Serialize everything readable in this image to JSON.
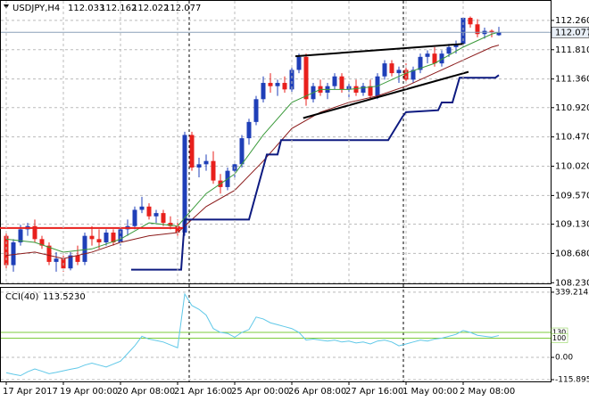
{
  "chart_data": [
    {
      "type": "candlestick",
      "title": "USDJPY,H4",
      "categories": [
        "17 Apr 2017",
        null,
        null,
        null,
        null,
        null,
        null,
        null,
        "19 Apr 00:00",
        null,
        null,
        null,
        null,
        null,
        null,
        null,
        "20 Apr 08:00",
        null,
        null,
        null,
        null,
        null,
        null,
        null,
        "21 Apr 16:00",
        null,
        null,
        null,
        null,
        null,
        null,
        null,
        "25 Apr 00:00",
        null,
        null,
        null,
        null,
        null,
        null,
        null,
        "26 Apr 08:00",
        null,
        null,
        null,
        null,
        null,
        null,
        null,
        "27 Apr 16:00",
        null,
        null,
        null,
        null,
        null,
        null,
        null,
        "1 May 00:00",
        null,
        null,
        null,
        null,
        null,
        null,
        null,
        "2 May 08:00",
        null,
        null,
        null,
        null,
        null
      ],
      "open": [
        108.95,
        108.5,
        108.85,
        109.05,
        109.1,
        108.9,
        108.8,
        108.55,
        108.6,
        108.45,
        108.65,
        108.55,
        108.95,
        108.9,
        108.85,
        109.0,
        108.85,
        109.05,
        109.1,
        109.35,
        109.4,
        109.25,
        109.3,
        109.15,
        109.1,
        109.0,
        110.5,
        110.0,
        110.05,
        110.1,
        109.8,
        109.7,
        109.95,
        110.05,
        110.45,
        110.7,
        111.05,
        111.3,
        111.25,
        111.3,
        111.2,
        111.5,
        111.7,
        111.05,
        111.25,
        111.15,
        111.25,
        111.4,
        111.2,
        111.25,
        111.15,
        111.25,
        111.1,
        111.4,
        111.6,
        111.45,
        111.5,
        111.35,
        111.5,
        111.7,
        111.75,
        111.6,
        111.75,
        111.85,
        111.9,
        112.3,
        112.2,
        112.05,
        112.1,
        112.033
      ],
      "high": [
        109.0,
        108.9,
        109.12,
        109.15,
        109.2,
        108.95,
        108.85,
        108.7,
        108.65,
        108.7,
        108.8,
        109.0,
        109.1,
        109.05,
        109.05,
        109.05,
        109.1,
        109.2,
        109.4,
        109.55,
        109.45,
        109.35,
        109.35,
        109.25,
        109.2,
        110.55,
        110.55,
        110.15,
        110.2,
        110.25,
        109.9,
        110.0,
        110.1,
        110.5,
        110.75,
        111.1,
        111.4,
        111.45,
        111.35,
        111.4,
        111.55,
        111.75,
        111.75,
        111.3,
        111.35,
        111.3,
        111.45,
        111.45,
        111.3,
        111.35,
        111.3,
        111.35,
        111.45,
        111.65,
        111.65,
        111.55,
        111.6,
        111.55,
        111.75,
        111.8,
        111.85,
        111.8,
        111.9,
        111.95,
        112.3,
        112.32,
        112.28,
        112.15,
        112.12,
        112.162
      ],
      "low": [
        108.45,
        108.4,
        108.8,
        108.95,
        108.85,
        108.75,
        108.5,
        108.4,
        108.4,
        108.42,
        108.5,
        108.5,
        108.8,
        108.75,
        108.8,
        108.8,
        108.8,
        108.95,
        109.05,
        109.3,
        109.2,
        109.15,
        109.1,
        109.05,
        108.95,
        108.95,
        109.95,
        109.85,
        109.95,
        109.75,
        109.6,
        109.65,
        109.85,
        110.0,
        110.35,
        110.65,
        111.0,
        111.15,
        111.1,
        111.15,
        111.15,
        111.45,
        110.95,
        111.0,
        111.1,
        111.05,
        111.2,
        111.15,
        111.05,
        111.1,
        111.1,
        111.05,
        111.05,
        111.35,
        111.4,
        111.3,
        111.3,
        111.3,
        111.45,
        111.6,
        111.55,
        111.55,
        111.7,
        111.75,
        111.85,
        112.15,
        112.0,
        111.98,
        112.0,
        112.022
      ],
      "close": [
        108.5,
        108.85,
        109.05,
        109.1,
        108.9,
        108.8,
        108.55,
        108.6,
        108.45,
        108.65,
        108.55,
        108.95,
        108.9,
        108.85,
        109.0,
        108.85,
        109.05,
        109.1,
        109.35,
        109.4,
        109.25,
        109.3,
        109.15,
        109.1,
        109.0,
        110.5,
        110.0,
        110.05,
        110.1,
        109.8,
        109.7,
        109.95,
        110.05,
        110.45,
        110.7,
        111.05,
        111.3,
        111.25,
        111.3,
        111.2,
        111.5,
        111.7,
        111.05,
        111.25,
        111.15,
        111.25,
        111.4,
        111.2,
        111.25,
        111.15,
        111.25,
        111.1,
        111.4,
        111.6,
        111.45,
        111.5,
        111.35,
        111.5,
        111.7,
        111.75,
        111.6,
        111.75,
        111.85,
        111.9,
        112.3,
        112.2,
        112.05,
        112.1,
        112.08,
        112.077
      ],
      "up_color": "#1f3fb8",
      "down_color": "#e8201c",
      "ylim": [
        108.22,
        112.56
      ],
      "yticks": [
        {
          "value": 112.26,
          "label": "112.260"
        },
        {
          "value": 111.81,
          "label": "111.810"
        },
        {
          "value": 111.36,
          "label": "111.360"
        },
        {
          "value": 110.92,
          "label": "110.920"
        },
        {
          "value": 110.47,
          "label": "110.470"
        },
        {
          "value": 110.02,
          "label": "110.020"
        },
        {
          "value": 109.57,
          "label": "109.570"
        },
        {
          "value": 109.13,
          "label": "109.130"
        },
        {
          "value": 108.68,
          "label": "108.680"
        },
        {
          "value": 108.23,
          "label": "108.230"
        }
      ],
      "grid": true,
      "lines": [
        {
          "color": "#3a9a3a",
          "width": 1,
          "x": [
            0,
            4,
            8,
            12,
            16,
            20,
            24,
            28,
            32,
            36,
            40,
            44,
            48,
            52,
            56,
            60,
            64,
            68,
            69
          ],
          "values": [
            108.9,
            108.85,
            108.7,
            108.75,
            108.9,
            109.15,
            109.1,
            109.6,
            109.9,
            110.5,
            111.0,
            111.2,
            111.2,
            111.25,
            111.45,
            111.6,
            111.85,
            112.05,
            112.08
          ]
        },
        {
          "color": "#8b1a1a",
          "width": 1,
          "x": [
            0,
            4,
            8,
            12,
            16,
            20,
            24,
            28,
            32,
            36,
            40,
            44,
            48,
            52,
            56,
            60,
            64,
            68,
            69
          ],
          "values": [
            108.65,
            108.7,
            108.6,
            108.7,
            108.85,
            108.95,
            109.0,
            109.4,
            109.65,
            110.1,
            110.6,
            110.85,
            111.0,
            111.1,
            111.25,
            111.45,
            111.65,
            111.85,
            111.88
          ]
        },
        {
          "color": "#0d1a80",
          "width": 2,
          "x": [
            17.5,
            24.5,
            25,
            34,
            36.5,
            38,
            38.5,
            53.5,
            55.5,
            56,
            60.5,
            61,
            62.5,
            63.5,
            68.5,
            69
          ],
          "values": [
            108.43,
            108.43,
            109.2,
            109.2,
            110.2,
            110.2,
            110.42,
            110.42,
            110.78,
            110.85,
            110.88,
            111.0,
            111.0,
            111.38,
            111.38,
            111.42
          ]
        },
        {
          "color": "#000000",
          "width": 2,
          "x": [
            40.5,
            64.1
          ],
          "values": [
            111.71,
            111.9
          ]
        },
        {
          "color": "#000000",
          "width": 2,
          "x": [
            41.6,
            64.75
          ],
          "values": [
            110.76,
            111.47
          ]
        },
        {
          "color": "#e8201c",
          "width": 2,
          "x": [
            -0.875,
            24.75
          ],
          "values": [
            109.07,
            109.07
          ]
        }
      ]
    },
    {
      "type": "line",
      "title": "CCI(40)",
      "value_label": "113.5230",
      "color": "#5fc8e8",
      "values": [
        -80,
        -88,
        -95,
        -75,
        -60,
        -72,
        -85,
        -78,
        -70,
        -62,
        -55,
        -40,
        -30,
        -40,
        -50,
        -35,
        -20,
        20,
        60,
        110,
        95,
        88,
        80,
        65,
        50,
        330,
        270,
        250,
        220,
        150,
        130,
        125,
        105,
        130,
        145,
        210,
        200,
        180,
        170,
        160,
        150,
        130,
        90,
        95,
        90,
        85,
        90,
        80,
        85,
        75,
        80,
        70,
        85,
        90,
        80,
        60,
        70,
        80,
        90,
        85,
        95,
        100,
        110,
        120,
        140,
        130,
        115,
        110,
        105,
        113.523
      ],
      "ylim": [
        -125,
        362
      ],
      "yticks": [
        339.2142,
        {
          "value": 0,
          "label": "0.00"
        },
        -115.8955
      ],
      "levels": [
        130,
        100
      ],
      "level_color": "#7ccc3c"
    }
  ]
}
